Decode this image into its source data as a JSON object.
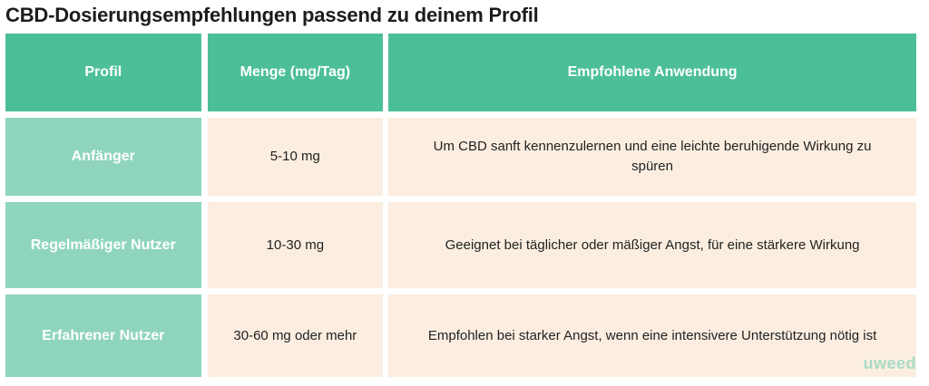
{
  "title": "CBD-Dosierungsempfehlungen passend zu deinem Profil",
  "table": {
    "headers": [
      "Profil",
      "Menge (mg/Tag)",
      "Empfohlene Anwendung"
    ],
    "rows": [
      {
        "profile": "Anfänger",
        "dose": "5-10 mg",
        "usage": "Um CBD sanft kennenzulernen und eine leichte beruhigende Wirkung zu spüren"
      },
      {
        "profile": "Regelmäßiger Nutzer",
        "dose": "10-30 mg",
        "usage": "Geeignet bei täglicher oder mäßiger Angst, für eine stärkere Wirkung"
      },
      {
        "profile": "Erfahrener Nutzer",
        "dose": "30-60 mg oder mehr",
        "usage": "Empfohlen bei starker Angst, wenn eine intensivere Unterstützung nötig ist"
      }
    ]
  },
  "brand": {
    "logo_text": "uweed"
  },
  "colors": {
    "header": "#4cbf9a",
    "profile_cell": "#8fd5bd",
    "body_cell": "#fbeee0"
  }
}
